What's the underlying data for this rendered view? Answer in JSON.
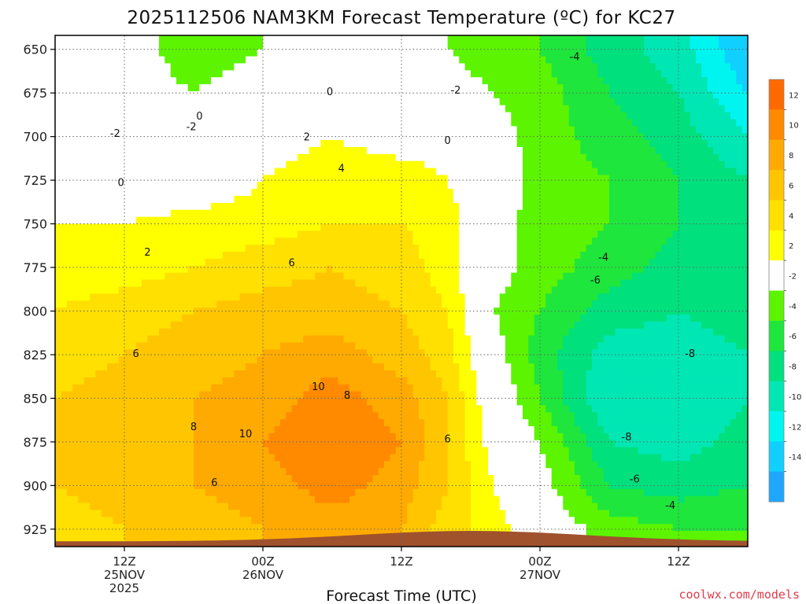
{
  "chart_data": {
    "type": "heatmap",
    "title": "2025112506 NAM3KM Forecast Temperature (ºC) for KC27",
    "xlabel": "Forecast Time (UTC)",
    "ylabel": "",
    "y_axis": {
      "reversed": true,
      "ylim": [
        935,
        642
      ],
      "ticks": [
        650,
        675,
        700,
        725,
        750,
        775,
        800,
        825,
        850,
        875,
        900,
        925
      ]
    },
    "x_axis": {
      "xlim_hours": [
        6,
        66
      ],
      "ticks": [
        {
          "hour": 12,
          "lines": [
            "12Z",
            "25NOV",
            "2025"
          ]
        },
        {
          "hour": 24,
          "lines": [
            "00Z",
            "26NOV"
          ]
        },
        {
          "hour": 36,
          "lines": [
            "12Z"
          ]
        },
        {
          "hour": 48,
          "lines": [
            "00Z",
            "27NOV"
          ]
        },
        {
          "hour": 60,
          "lines": [
            "12Z"
          ]
        }
      ]
    },
    "grid": true,
    "colorbar": {
      "levels": [
        -16,
        -14,
        -12,
        -10,
        -8,
        -6,
        -4,
        -2,
        2,
        4,
        6,
        8,
        10,
        12,
        14
      ],
      "labels": [
        "-14",
        "-12",
        "-10",
        "-8",
        "-6",
        "-4",
        "-2",
        "2",
        "4",
        "6",
        "8",
        "10",
        "12"
      ],
      "colors": [
        "#1fa6ff",
        "#10d0ff",
        "#00f5f0",
        "#00e7b4",
        "#00e07d",
        "#1ee63d",
        "#5cf400",
        "#ffffff",
        "#ffff00",
        "#ffe000",
        "#ffc600",
        "#ffaa00",
        "#ff8a00",
        "#ff6a00"
      ]
    },
    "contour_labels": [
      {
        "text": "-2",
        "hour": 11.2,
        "p": 698
      },
      {
        "text": "-2",
        "hour": 17.8,
        "p": 694
      },
      {
        "text": "0",
        "hour": 18.5,
        "p": 688
      },
      {
        "text": "0",
        "hour": 11.7,
        "p": 726
      },
      {
        "text": "0",
        "hour": 29.8,
        "p": 674
      },
      {
        "text": "-2",
        "hour": 40.7,
        "p": 673
      },
      {
        "text": "0",
        "hour": 40.0,
        "p": 702
      },
      {
        "text": "-4",
        "hour": 51.0,
        "p": 654
      },
      {
        "text": "2",
        "hour": 27.8,
        "p": 700
      },
      {
        "text": "4",
        "hour": 30.8,
        "p": 718
      },
      {
        "text": "2",
        "hour": 14.0,
        "p": 766
      },
      {
        "text": "6",
        "hour": 26.5,
        "p": 772
      },
      {
        "text": "6",
        "hour": 13.0,
        "p": 824
      },
      {
        "text": "10",
        "hour": 28.8,
        "p": 843
      },
      {
        "text": "8",
        "hour": 31.3,
        "p": 848
      },
      {
        "text": "8",
        "hour": 18.0,
        "p": 866
      },
      {
        "text": "10",
        "hour": 22.5,
        "p": 870
      },
      {
        "text": "6",
        "hour": 19.8,
        "p": 898
      },
      {
        "text": "6",
        "hour": 40.0,
        "p": 873
      },
      {
        "text": "-4",
        "hour": 53.5,
        "p": 769
      },
      {
        "text": "-6",
        "hour": 52.8,
        "p": 782
      },
      {
        "text": "-8",
        "hour": 61.0,
        "p": 824
      },
      {
        "text": "-8",
        "hour": 55.5,
        "p": 872
      },
      {
        "text": "-6",
        "hour": 56.2,
        "p": 896
      },
      {
        "text": "-4",
        "hour": 59.3,
        "p": 911
      }
    ],
    "series": [
      {
        "name": "",
        "hour": 6,
        "values": [
          -1,
          -1,
          0,
          1,
          2,
          3,
          4,
          5,
          6,
          6,
          6,
          5
        ]
      },
      {
        "name": "",
        "hour": 12,
        "values": [
          -1,
          -1,
          -1,
          0,
          2,
          3,
          5,
          6,
          7,
          7,
          7,
          6
        ]
      },
      {
        "name": "",
        "hour": 18,
        "values": [
          -3,
          -2,
          -1,
          0,
          3,
          4,
          6,
          7,
          8,
          8,
          8,
          7
        ]
      },
      {
        "name": "",
        "hour": 24,
        "values": [
          -2,
          -1,
          1,
          2,
          3,
          5,
          7,
          8,
          9,
          10,
          9,
          8
        ]
      },
      {
        "name": "",
        "hour": 30,
        "values": [
          -1,
          0,
          2,
          3,
          4,
          6,
          7,
          9,
          11,
          12,
          11,
          9
        ]
      },
      {
        "name": "",
        "hour": 36,
        "values": [
          -1,
          0,
          1,
          3,
          4,
          5,
          6,
          7,
          9,
          10,
          9,
          8
        ]
      },
      {
        "name": "",
        "hour": 40,
        "values": [
          -2,
          -1,
          1,
          2,
          3,
          3,
          4,
          5,
          6,
          6,
          6,
          5
        ]
      },
      {
        "name": "",
        "hour": 44,
        "values": [
          -3,
          -2,
          -1,
          0,
          -1,
          -1,
          -2,
          -1,
          0,
          1,
          2,
          3
        ]
      },
      {
        "name": "",
        "hour": 48,
        "values": [
          -4,
          -3,
          -3,
          -3,
          -3,
          -3,
          -4,
          -5,
          -4,
          -2,
          -1,
          0
        ]
      },
      {
        "name": "",
        "hour": 54,
        "values": [
          -7,
          -6,
          -5,
          -4,
          -4,
          -5,
          -7,
          -9,
          -10,
          -8,
          -6,
          -3
        ]
      },
      {
        "name": "",
        "hour": 60,
        "values": [
          -9,
          -8,
          -7,
          -6,
          -6,
          -7,
          -8,
          -9,
          -10,
          -9,
          -7,
          -4
        ]
      },
      {
        "name": "",
        "hour": 66,
        "values": [
          -14,
          -12,
          -10,
          -8,
          -7,
          -7,
          -7,
          -8,
          -8,
          -7,
          -6,
          -4
        ]
      }
    ]
  },
  "watermark": "coolwx.com/models"
}
